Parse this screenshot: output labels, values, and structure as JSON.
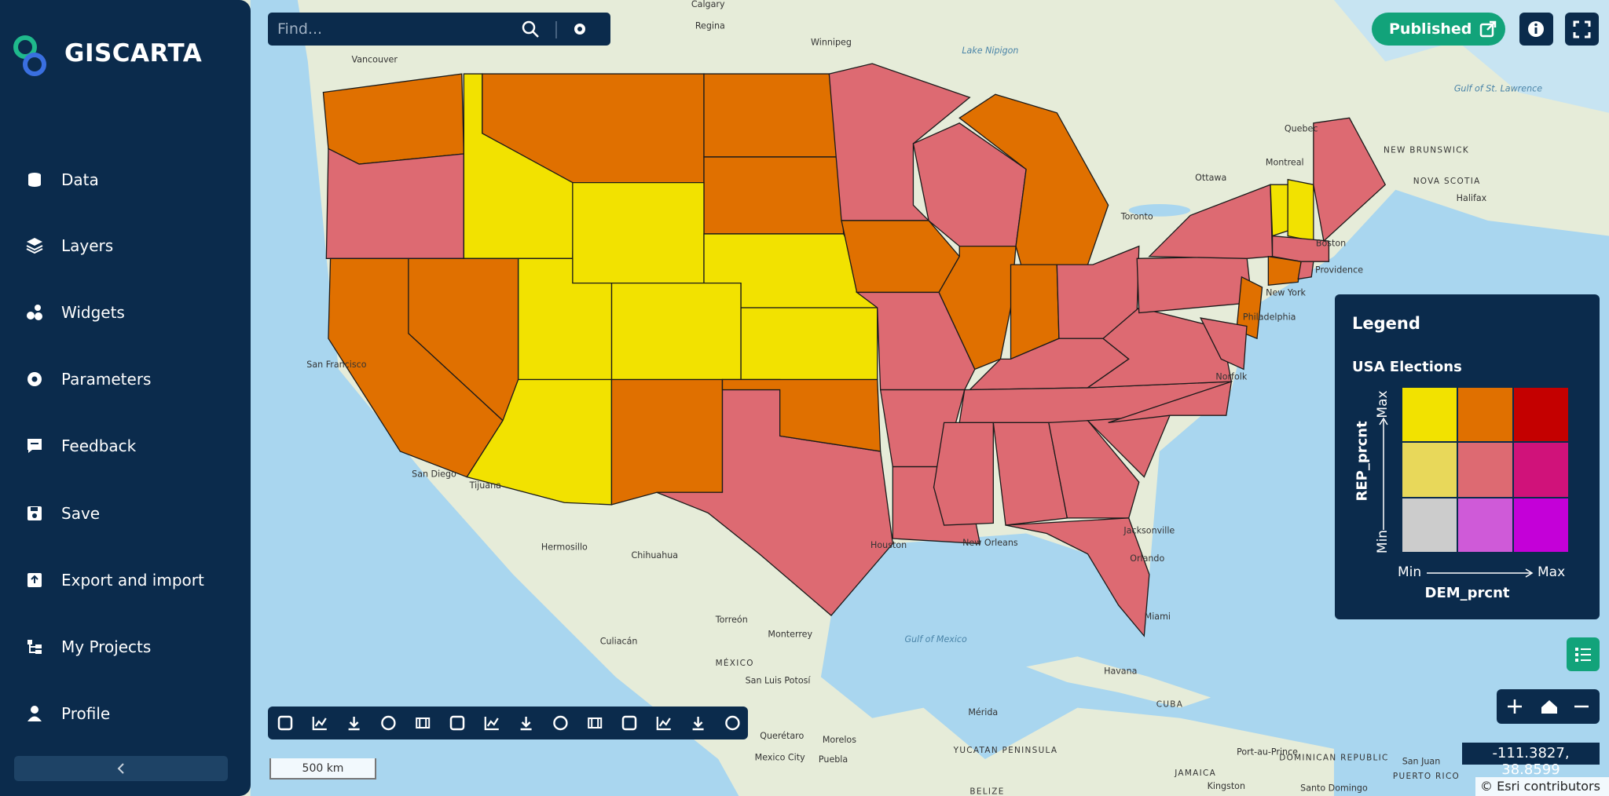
{
  "sidebar": {
    "brand": "GISCARTA",
    "nav": [
      "Data",
      "Layers",
      "Widgets",
      "Parameters",
      "Feedback",
      "Save",
      "Export and import",
      "My Projects",
      "Profile"
    ]
  },
  "search": {
    "placeholder": "Find..."
  },
  "top_bar": {
    "publish_button": "Published"
  },
  "legend": {
    "title": "Legend",
    "layer": "USA Elections",
    "y_field": "REP_prcnt",
    "x_field": "DEM_prcnt",
    "min": "Min",
    "max": "Max"
  },
  "map": {
    "scale": "500 km",
    "coordinates": "-111.3827, 38.8599",
    "attribution": "© Esri contributors",
    "labels": [
      "Calgary",
      "Regina",
      "Winnipeg",
      "Vancouver",
      "Lake Nipigon",
      "Quebec",
      "Montreal",
      "Ottawa",
      "Toronto",
      "NEW BRUNSWICK",
      "NOVA SCOTIA",
      "Halifax",
      "Gulf of St. Lawrence",
      "Boston",
      "Providence",
      "New York",
      "Philadelphia",
      "Norfolk",
      "Jacksonville",
      "Orlando",
      "Miami",
      "New Orleans",
      "Houston",
      "San Francisco",
      "San Diego",
      "Tijuana",
      "Hermosillo",
      "Chihuahua",
      "Torreón",
      "Monterrey",
      "Culiacán",
      "MÉXICO",
      "San Luis Potosí",
      "Mérida",
      "YUCATAN PENINSULA",
      "Querétaro",
      "Morelos",
      "Mexico City",
      "Puebla",
      "Gulf of Mexico",
      "Havana",
      "CUBA",
      "JAMAICA",
      "Kingston",
      "Port-au-Prince",
      "DOMINICAN REPUBLIC",
      "Santo Domingo",
      "San Juan",
      "PUERTO RICO",
      "BELIZE"
    ]
  }
}
